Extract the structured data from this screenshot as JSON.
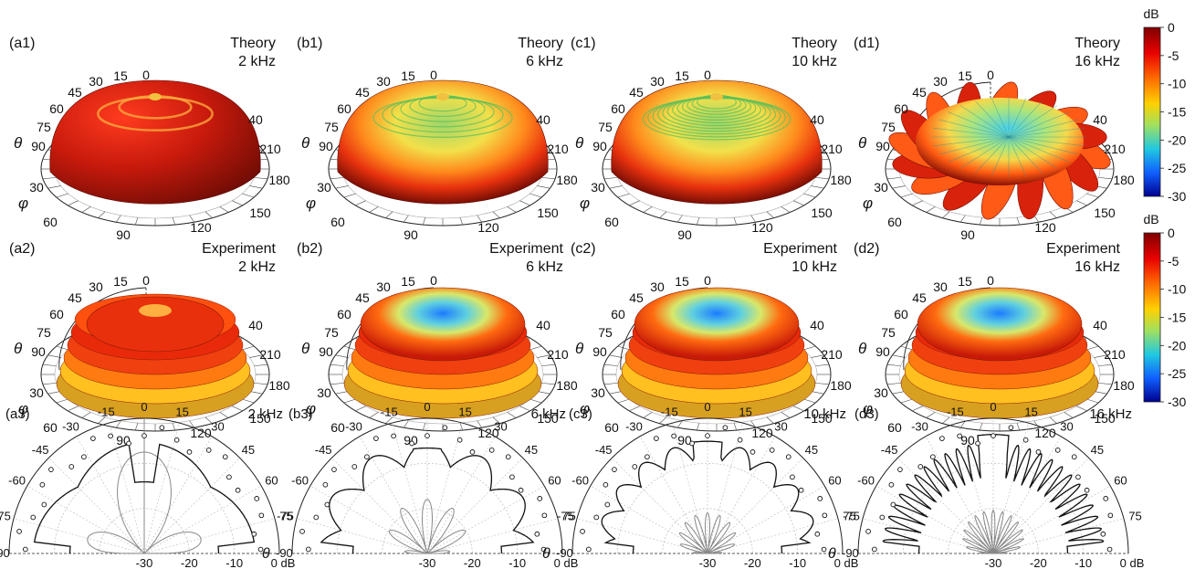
{
  "theta_symbol": "θ",
  "phi_symbol": "φ",
  "colorbar": {
    "unit": "dB",
    "ticks": [
      "0",
      "-5",
      "-10",
      "-15",
      "-20",
      "-25",
      "-30"
    ],
    "range": [
      -30,
      0
    ],
    "colors": [
      "#7f0000",
      "#e80000",
      "#ff6a00",
      "#ffd000",
      "#a0e060",
      "#20c8e0",
      "#1060ff",
      "#00008f"
    ]
  },
  "rows_3d": [
    {
      "row": "theory",
      "panels": [
        {
          "id": "(a1)",
          "label": "Theory",
          "freq": "2 kHz"
        },
        {
          "id": "(b1)",
          "label": "Theory",
          "freq": "6 kHz"
        },
        {
          "id": "(c1)",
          "label": "Theory",
          "freq": "10 kHz"
        },
        {
          "id": "(d1)",
          "label": "Theory",
          "freq": "16 kHz"
        }
      ]
    },
    {
      "row": "experiment",
      "panels": [
        {
          "id": "(a2)",
          "label": "Experiment",
          "freq": "2 kHz"
        },
        {
          "id": "(b2)",
          "label": "Experiment",
          "freq": "6 kHz"
        },
        {
          "id": "(c2)",
          "label": "Experiment",
          "freq": "10 kHz"
        },
        {
          "id": "(d2)",
          "label": "Experiment",
          "freq": "16 kHz"
        }
      ]
    }
  ],
  "axis3d": {
    "theta_ticks": [
      "0",
      "15",
      "30",
      "45",
      "60",
      "75",
      "90"
    ],
    "phi_ticks": [
      "30",
      "60",
      "90",
      "120",
      "150",
      "180",
      "210",
      "240"
    ],
    "phi_arc_ticks_partial": "40"
  },
  "chart_data": [
    {
      "type": "polar",
      "panel": "(a3)",
      "freq": "2 kHz",
      "angle_ticks": [
        "-90",
        "-75",
        "-60",
        "-45",
        "-30",
        "-15",
        "0",
        "15",
        "30",
        "45",
        "60",
        "75"
      ],
      "radial_ticks": [
        "-30",
        "-20",
        "-10",
        "0 dB"
      ],
      "rlim": [
        -30,
        0
      ],
      "series": [
        {
          "style": "theory-black",
          "peaks": 1,
          "depth": 0.25,
          "notch": 0.35
        },
        {
          "style": "theory-grey",
          "lobes": 4,
          "level": 0.75
        },
        {
          "style": "experiment-circles",
          "count": 23
        }
      ]
    },
    {
      "type": "polar",
      "panel": "(b3)",
      "freq": "6 kHz",
      "angle_ticks": [
        "-90",
        "-75",
        "-60",
        "-45",
        "-30",
        "-15",
        "0",
        "15",
        "30",
        "45",
        "60",
        "75"
      ],
      "radial_ticks": [
        "-30",
        "-20",
        "-10",
        "0 dB"
      ],
      "rlim": [
        -30,
        0
      ],
      "series": [
        {
          "style": "theory-black",
          "peaks": 3,
          "depth": 0.32,
          "notch": 0.1
        },
        {
          "style": "theory-grey",
          "lobes": 12,
          "level": 0.4
        },
        {
          "style": "experiment-circles",
          "count": 23
        }
      ]
    },
    {
      "type": "polar",
      "panel": "(c3)",
      "freq": "10 kHz",
      "angle_ticks": [
        "-90",
        "-75",
        "-60",
        "-45",
        "-30",
        "-15",
        "0",
        "15",
        "30",
        "45",
        "60",
        "75"
      ],
      "radial_ticks": [
        "-30",
        "-20",
        "-10",
        "0 dB"
      ],
      "rlim": [
        -30,
        0
      ],
      "series": [
        {
          "style": "theory-black",
          "peaks": 5,
          "depth": 0.25,
          "notch": 0.05
        },
        {
          "style": "theory-grey",
          "lobes": 20,
          "level": 0.3
        },
        {
          "style": "experiment-circles",
          "count": 23
        }
      ]
    },
    {
      "type": "polar",
      "panel": "(d3)",
      "freq": "16 kHz",
      "angle_ticks": [
        "-90",
        "-75",
        "-60",
        "-45",
        "-30",
        "-15",
        "0",
        "15",
        "30",
        "45",
        "60",
        "75"
      ],
      "radial_ticks": [
        "-30",
        "-20",
        "-10",
        "0 dB"
      ],
      "rlim": [
        -30,
        0
      ],
      "series": [
        {
          "style": "theory-black",
          "peaks": 14,
          "depth": 0.55,
          "notch": 0.0
        },
        {
          "style": "theory-grey",
          "lobes": 28,
          "level": 0.32
        },
        {
          "style": "experiment-circles",
          "count": 23
        }
      ]
    }
  ]
}
